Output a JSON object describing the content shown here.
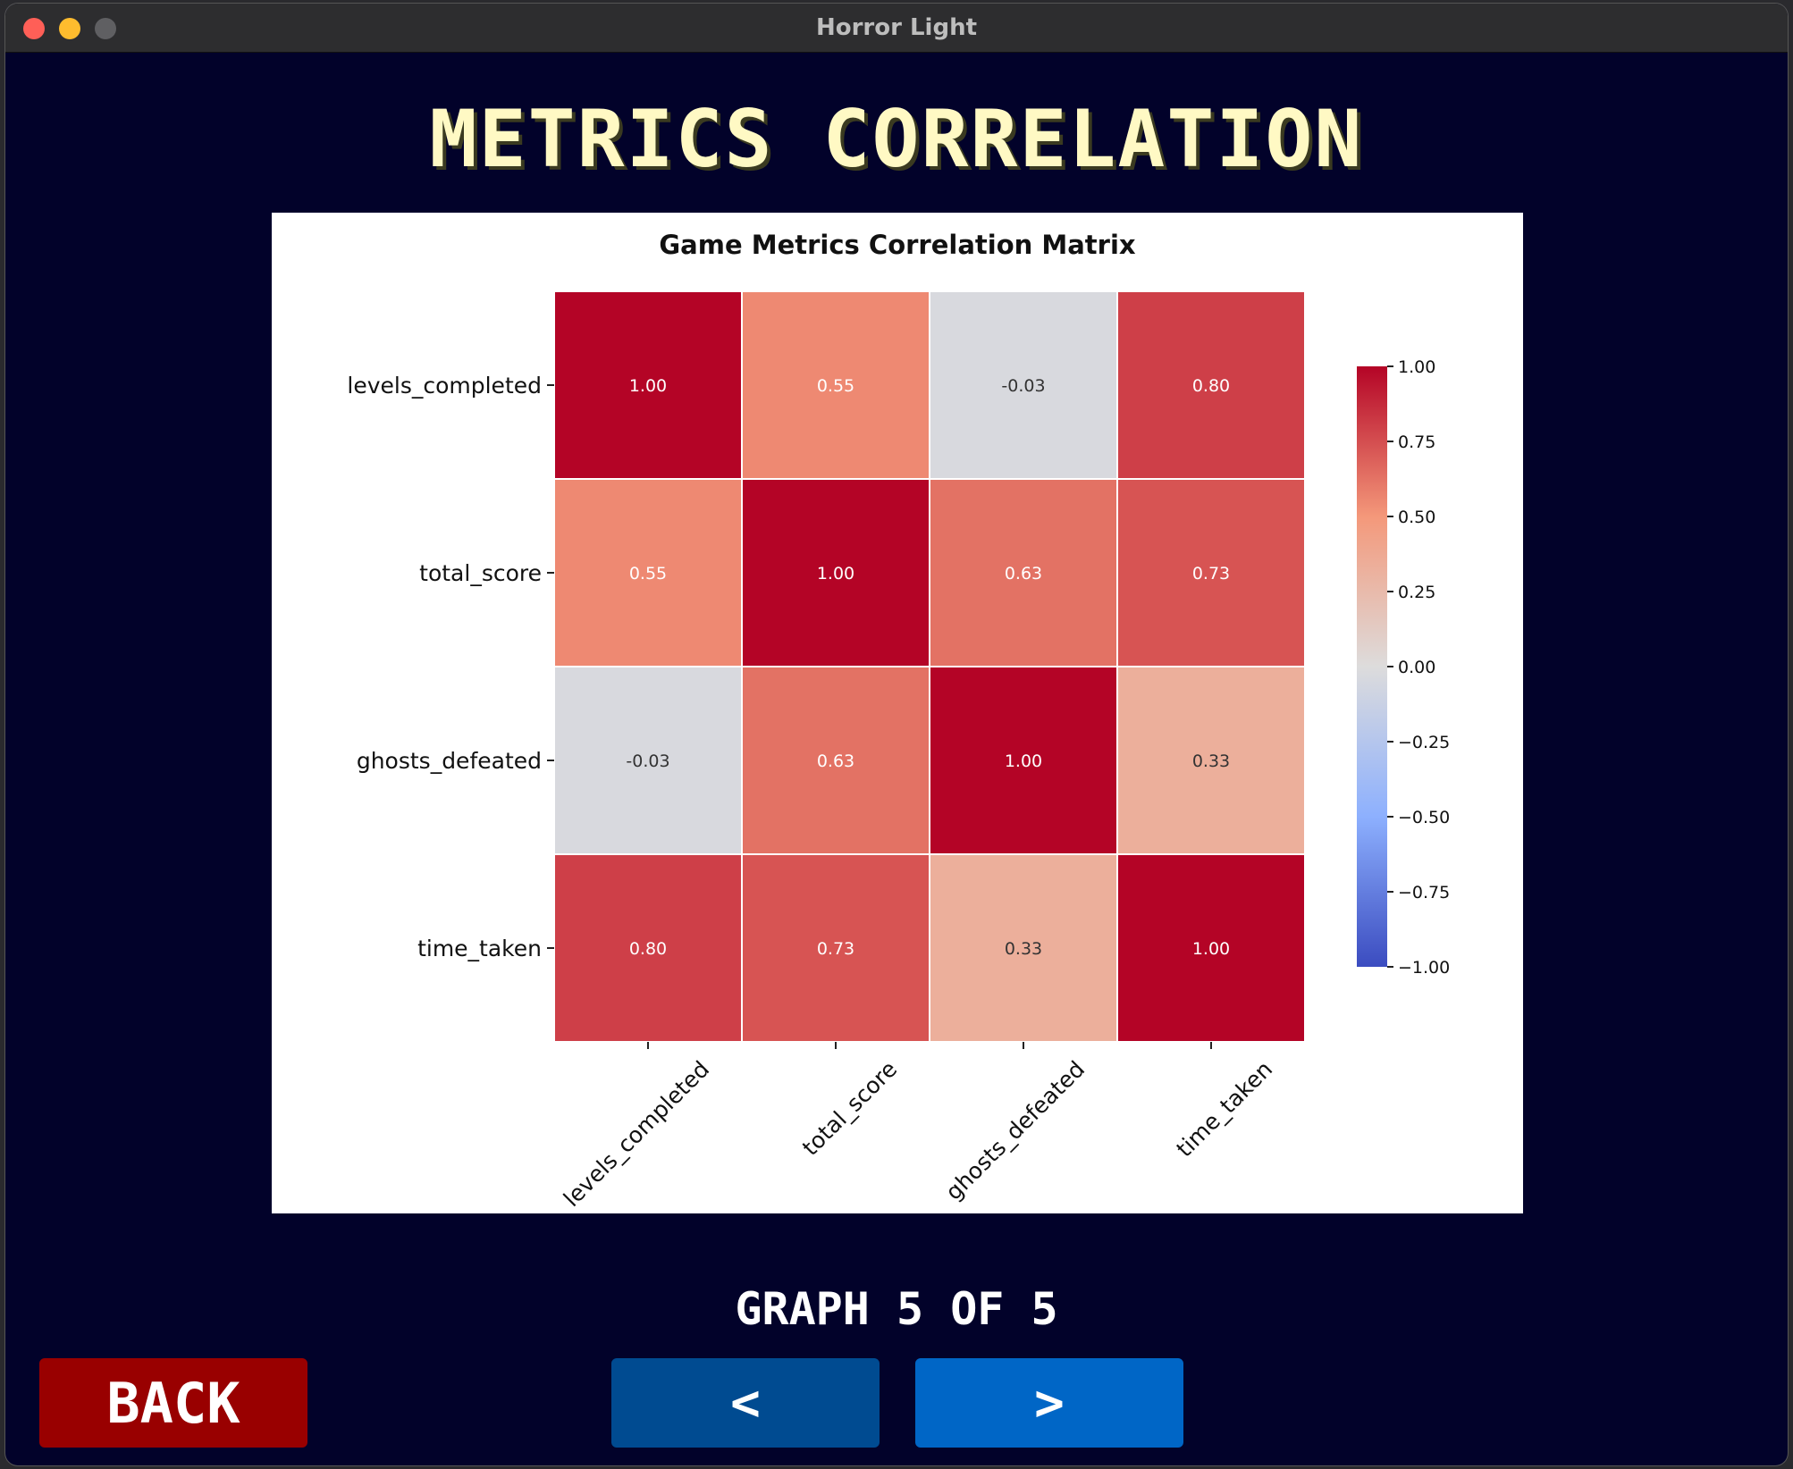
{
  "window": {
    "title": "Horror Light"
  },
  "page": {
    "title": "METRICS CORRELATION",
    "graph_counter": "GRAPH 5 OF 5"
  },
  "buttons": {
    "back_label": "BACK",
    "prev_label": "<",
    "next_label": ">"
  },
  "colors": {
    "background": "#02022a",
    "title_text": "#fff9c4",
    "back_button": "#990000",
    "prev_button": "#004b91",
    "next_button": "#0066c6"
  },
  "chart_data": {
    "type": "heatmap",
    "title": "Game Metrics Correlation Matrix",
    "rows": [
      "levels_completed",
      "total_score",
      "ghosts_defeated",
      "time_taken"
    ],
    "columns": [
      "levels_completed",
      "total_score",
      "ghosts_defeated",
      "time_taken"
    ],
    "values": [
      [
        1.0,
        0.55,
        -0.03,
        0.8
      ],
      [
        0.55,
        1.0,
        0.63,
        0.73
      ],
      [
        -0.03,
        0.63,
        1.0,
        0.33
      ],
      [
        0.8,
        0.73,
        0.33,
        1.0
      ]
    ],
    "annotations": [
      [
        "1.00",
        "0.55",
        "-0.03",
        "0.80"
      ],
      [
        "0.55",
        "1.00",
        "0.63",
        "0.73"
      ],
      [
        "-0.03",
        "0.63",
        "1.00",
        "0.33"
      ],
      [
        "0.80",
        "0.73",
        "0.33",
        "1.00"
      ]
    ],
    "colormap": "coolwarm",
    "vmin": -1.0,
    "vmax": 1.0,
    "colorbar_ticks": [
      "1.00",
      "0.75",
      "0.50",
      "0.25",
      "0.00",
      "−0.25",
      "−0.50",
      "−0.75",
      "−1.00"
    ],
    "colorbar_tick_values": [
      1.0,
      0.75,
      0.5,
      0.25,
      0.0,
      -0.25,
      -0.5,
      -0.75,
      -1.0
    ]
  }
}
